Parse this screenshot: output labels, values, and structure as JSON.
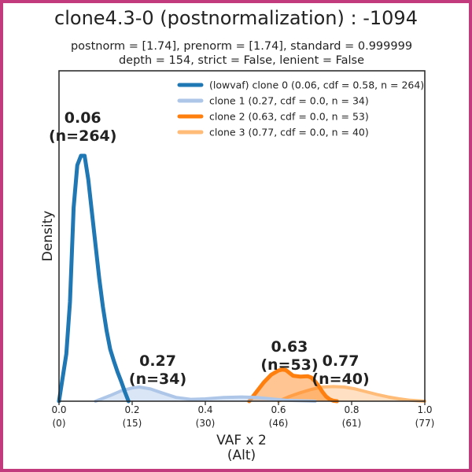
{
  "frame_color": "#c23b7d",
  "chart_data": {
    "type": "area",
    "title": "clone4.3-0 (postnormalization) : -1094",
    "subtitle_line1": "postnorm = [1.74], prenorm = [1.74], standard = 0.999999",
    "subtitle_line2": "depth = 154, strict = False, lenient = False",
    "xlabel_line1": "VAF x 2",
    "xlabel_line2": "(Alt)",
    "ylabel": "Density",
    "xlim": [
      0.0,
      1.0
    ],
    "ylim": [
      0,
      7.0
    ],
    "grid": false,
    "legend_position": "top-right",
    "x_ticks": [
      0.0,
      0.2,
      0.4,
      0.6,
      0.8,
      1.0
    ],
    "x_tick_labels": [
      "0.0",
      "0.2",
      "0.4",
      "0.6",
      "0.8",
      "1.0"
    ],
    "x_tick_alt_labels": [
      "(0)",
      "(15)",
      "(30)",
      "(46)",
      "(61)",
      "(77)"
    ],
    "series": [
      {
        "name": "(lowvaf) clone 0 (0.06, cdf = 0.58, n = 264)",
        "color": "#1f77b4",
        "fill": false,
        "line_width": 5,
        "x": [
          0.0,
          0.02,
          0.03,
          0.04,
          0.05,
          0.06,
          0.07,
          0.08,
          0.09,
          0.1,
          0.11,
          0.12,
          0.13,
          0.14,
          0.15,
          0.16,
          0.17,
          0.18,
          0.19
        ],
        "y": [
          0.0,
          1.0,
          2.1,
          4.1,
          5.0,
          5.2,
          5.2,
          4.7,
          4.0,
          3.3,
          2.6,
          2.0,
          1.5,
          1.1,
          0.85,
          0.62,
          0.42,
          0.2,
          0.0
        ]
      },
      {
        "name": "clone 1 (0.27, cdf = 0.0, n = 34)",
        "color": "#aec7e8",
        "fill": true,
        "line_width": 4,
        "x": [
          0.1,
          0.14,
          0.17,
          0.2,
          0.22,
          0.25,
          0.28,
          0.32,
          0.36,
          0.4,
          0.45,
          0.5,
          0.54,
          0.58,
          0.62,
          0.66,
          0.7
        ],
        "y": [
          0.0,
          0.12,
          0.22,
          0.28,
          0.3,
          0.26,
          0.18,
          0.08,
          0.04,
          0.05,
          0.08,
          0.09,
          0.08,
          0.05,
          0.02,
          0.01,
          0.0
        ]
      },
      {
        "name": "clone 2 (0.63, cdf = 0.0, n = 53)",
        "color": "#ff7f0e",
        "fill": true,
        "line_width": 5,
        "x": [
          0.52,
          0.54,
          0.56,
          0.58,
          0.6,
          0.61,
          0.62,
          0.63,
          0.64,
          0.66,
          0.68,
          0.69,
          0.7,
          0.71,
          0.72,
          0.73,
          0.74,
          0.75,
          0.76
        ],
        "y": [
          0.0,
          0.2,
          0.4,
          0.56,
          0.65,
          0.67,
          0.66,
          0.6,
          0.54,
          0.52,
          0.53,
          0.5,
          0.42,
          0.32,
          0.2,
          0.1,
          0.04,
          0.01,
          0.0
        ]
      },
      {
        "name": "clone 3 (0.77, cdf = 0.0, n = 40)",
        "color": "#ffbb78",
        "fill": true,
        "line_width": 4,
        "x": [
          0.6,
          0.63,
          0.66,
          0.69,
          0.72,
          0.75,
          0.78,
          0.81,
          0.84,
          0.87,
          0.9,
          0.93,
          0.96,
          1.0
        ],
        "y": [
          0.0,
          0.1,
          0.18,
          0.25,
          0.3,
          0.31,
          0.3,
          0.26,
          0.2,
          0.14,
          0.09,
          0.05,
          0.02,
          0.0
        ]
      }
    ],
    "annotations": [
      {
        "value": "0.06",
        "count": "(n=264)",
        "x": 0.065,
        "y": 5.9
      },
      {
        "value": "0.27",
        "count": "(n=34)",
        "x": 0.27,
        "y": 0.75
      },
      {
        "value": "0.63",
        "count": "(n=53)",
        "x": 0.63,
        "y": 1.05
      },
      {
        "value": "0.77",
        "count": "(n=40)",
        "x": 0.77,
        "y": 0.75
      }
    ]
  }
}
